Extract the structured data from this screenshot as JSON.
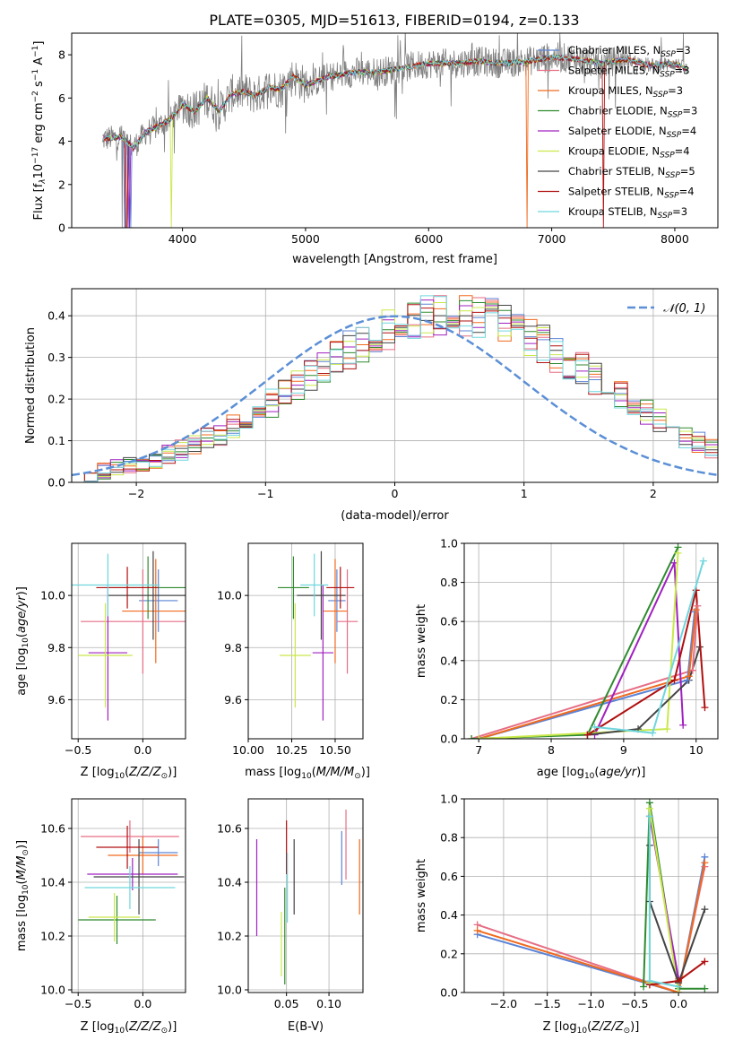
{
  "figure": {
    "title": "PLATE=0305, MJD=51613, FIBERID=0194, z=0.133"
  },
  "colors": {
    "Chabrier MILES": "#5b84d6",
    "Salpeter MILES": "#e66e85",
    "Kroupa MILES": "#f06a1e",
    "Chabrier ELODIE": "#2f8a2f",
    "Salpeter ELODIE": "#a020c0",
    "Kroupa ELODIE": "#c9e84a",
    "Chabrier STELIB": "#444444",
    "Salpeter STELIB": "#b01010",
    "Kroupa STELIB": "#6fd6dd",
    "data": "#808080",
    "gaussian": "#5b8fd6",
    "grid": "#b0b0b0"
  },
  "chart_data": [
    {
      "id": "spectrum",
      "type": "line",
      "xlabel": "wavelength [Angstrom, rest frame]",
      "ylabel": "Flux [f_λ 10^-17 erg cm^-2 s^-1 A^-1]",
      "xlim": [
        3100,
        8350
      ],
      "ylim": [
        0,
        9
      ],
      "xticks": [
        4000,
        5000,
        6000,
        7000,
        8000
      ],
      "yticks": [
        0,
        2,
        4,
        6,
        8
      ],
      "grid": false,
      "legend_position": "top-right",
      "x": [
        3350,
        3500,
        3600,
        3700,
        3800,
        3900,
        4000,
        4100,
        4200,
        4300,
        4400,
        4500,
        4600,
        4700,
        4800,
        4900,
        5000,
        5200,
        5400,
        5600,
        5800,
        6000,
        6200,
        6400,
        6600,
        6800,
        7000,
        7200,
        7400,
        7600,
        7800,
        8000,
        8100
      ],
      "series": [
        {
          "name": "Chabrier MILES",
          "nssp": "3",
          "dips": [
            3530,
            3560,
            3580
          ]
        },
        {
          "name": "Salpeter MILES",
          "nssp": "3",
          "dips": [
            3550
          ]
        },
        {
          "name": "Kroupa MILES",
          "nssp": "3",
          "dips": [
            6800
          ]
        },
        {
          "name": "Chabrier ELODIE",
          "nssp": "3",
          "dips": []
        },
        {
          "name": "Salpeter ELODIE",
          "nssp": "4",
          "dips": [
            3570
          ]
        },
        {
          "name": "Kroupa ELODIE",
          "nssp": "4",
          "dips": [
            3910
          ]
        },
        {
          "name": "Chabrier STELIB",
          "nssp": "5",
          "dips": []
        },
        {
          "name": "Salpeter STELIB",
          "nssp": "4",
          "dips": [
            3545,
            7420
          ]
        },
        {
          "name": "Kroupa STELIB",
          "nssp": "3",
          "dips": []
        }
      ],
      "model_y": [
        4.1,
        4.2,
        3.7,
        4.4,
        4.7,
        5.0,
        5.7,
        5.4,
        6.0,
        5.4,
        6.2,
        6.3,
        6.1,
        6.5,
        6.4,
        7.0,
        6.6,
        7.0,
        7.2,
        7.2,
        7.4,
        7.6,
        7.6,
        7.7,
        7.6,
        7.7,
        7.9,
        7.8,
        7.6,
        7.8,
        7.5,
        7.6,
        7.3
      ]
    },
    {
      "id": "residuals",
      "type": "step-histogram",
      "xlabel": "(data-model)/error",
      "ylabel": "Normed distribution",
      "xlim": [
        -2.5,
        2.5
      ],
      "ylim": [
        0,
        0.465
      ],
      "xticks": [
        -2,
        -1,
        0,
        1,
        2
      ],
      "yticks": [
        0.0,
        0.1,
        0.2,
        0.3,
        0.4
      ],
      "grid": true,
      "legend": "𝒩(0, 1)",
      "legend_position": "top-right",
      "bin_edges_start": -2.5,
      "bin_width": 0.1,
      "base_heights": [
        0.018,
        0.022,
        0.028,
        0.034,
        0.04,
        0.048,
        0.056,
        0.066,
        0.078,
        0.09,
        0.104,
        0.116,
        0.132,
        0.15,
        0.17,
        0.19,
        0.21,
        0.232,
        0.255,
        0.28,
        0.3,
        0.318,
        0.335,
        0.352,
        0.37,
        0.385,
        0.395,
        0.402,
        0.405,
        0.408,
        0.405,
        0.4,
        0.39,
        0.38,
        0.365,
        0.35,
        0.33,
        0.31,
        0.29,
        0.27,
        0.25,
        0.23,
        0.21,
        0.19,
        0.17,
        0.15,
        0.13,
        0.11,
        0.094,
        0.08
      ],
      "gaussian": {
        "mean": 0,
        "sigma": 1
      }
    },
    {
      "id": "age-vs-Z",
      "type": "errorbar",
      "xlabel": "Z [log10(Z/Z☉)]",
      "ylabel": "age  [log10(age/yr)]",
      "xlim": [
        -0.55,
        0.33
      ],
      "ylim": [
        9.45,
        10.2
      ],
      "xticks": [
        -0.5,
        0.0
      ],
      "yticks": [
        9.6,
        9.8,
        10.0
      ],
      "grid": true,
      "points": [
        {
          "name": "Chabrier MILES",
          "x": 0.12,
          "y": 9.98,
          "xerr": 0.15,
          "yerr": 0.12
        },
        {
          "name": "Salpeter MILES",
          "x": 0.0,
          "y": 9.9,
          "xerr": 0.48,
          "yerr": 0.2
        },
        {
          "name": "Kroupa MILES",
          "x": 0.1,
          "y": 9.94,
          "xerr": 0.26,
          "yerr": 0.2
        },
        {
          "name": "Chabrier ELODIE",
          "x": 0.04,
          "y": 10.03,
          "xerr": 0.3,
          "yerr": 0.12
        },
        {
          "name": "Salpeter ELODIE",
          "x": -0.27,
          "y": 9.78,
          "xerr": 0.15,
          "yerr": 0.26
        },
        {
          "name": "Kroupa ELODIE",
          "x": -0.29,
          "y": 9.77,
          "xerr": 0.21,
          "yerr": 0.2
        },
        {
          "name": "Chabrier STELIB",
          "x": 0.08,
          "y": 10.0,
          "xerr": 0.35,
          "yerr": 0.17
        },
        {
          "name": "Salpeter STELIB",
          "x": -0.12,
          "y": 10.03,
          "xerr": 0.24,
          "yerr": 0.08
        },
        {
          "name": "Kroupa STELIB",
          "x": -0.27,
          "y": 10.04,
          "xerr": 0.4,
          "yerr": 0.12
        }
      ]
    },
    {
      "id": "age-vs-mass",
      "type": "errorbar",
      "xlabel": "mass [log10(M/M☉)]",
      "ylabel": "",
      "xlim": [
        10.0,
        10.66
      ],
      "ylim": [
        9.45,
        10.2
      ],
      "xticks": [
        10.0,
        10.25,
        10.5
      ],
      "yticks": [
        9.6,
        9.8,
        10.0
      ],
      "grid": true,
      "points": [
        {
          "name": "Chabrier MILES",
          "x": 10.51,
          "y": 9.98,
          "xerr": 0.05,
          "yerr": 0.12
        },
        {
          "name": "Salpeter MILES",
          "x": 10.57,
          "y": 9.9,
          "xerr": 0.06,
          "yerr": 0.2
        },
        {
          "name": "Kroupa MILES",
          "x": 10.5,
          "y": 9.94,
          "xerr": 0.07,
          "yerr": 0.2
        },
        {
          "name": "Chabrier ELODIE",
          "x": 10.26,
          "y": 10.03,
          "xerr": 0.09,
          "yerr": 0.12
        },
        {
          "name": "Salpeter ELODIE",
          "x": 10.43,
          "y": 9.78,
          "xerr": 0.06,
          "yerr": 0.26
        },
        {
          "name": "Kroupa ELODIE",
          "x": 10.27,
          "y": 9.77,
          "xerr": 0.09,
          "yerr": 0.2
        },
        {
          "name": "Chabrier STELIB",
          "x": 10.42,
          "y": 10.0,
          "xerr": 0.14,
          "yerr": 0.17
        },
        {
          "name": "Salpeter STELIB",
          "x": 10.53,
          "y": 10.03,
          "xerr": 0.08,
          "yerr": 0.08
        },
        {
          "name": "Kroupa STELIB",
          "x": 10.38,
          "y": 10.04,
          "xerr": 0.08,
          "yerr": 0.12
        }
      ]
    },
    {
      "id": "mass-weight-vs-age",
      "type": "line",
      "xlabel": "age  [log10(age/yr)]",
      "ylabel": "mass weight",
      "xlim": [
        6.8,
        10.3
      ],
      "ylim": [
        0,
        1
      ],
      "xticks": [
        7,
        8,
        9,
        10
      ],
      "yticks": [
        0.0,
        0.2,
        0.4,
        0.6,
        0.8,
        1.0
      ],
      "grid": true,
      "series": [
        {
          "name": "Chabrier MILES",
          "x": [
            7.0,
            9.88
          ],
          "y": [
            0.0,
            0.3
          ]
        },
        {
          "name": "Salpeter MILES",
          "x": [
            6.9,
            9.95
          ],
          "y": [
            0.0,
            0.35
          ]
        },
        {
          "name": "Kroupa MILES",
          "x": [
            7.0,
            9.9
          ],
          "y": [
            0.0,
            0.32
          ]
        },
        {
          "name": "Chabrier ELODIE",
          "x": [
            6.9,
            8.5,
            9.75
          ],
          "y": [
            0.0,
            0.02,
            0.98
          ]
        },
        {
          "name": "Salpeter ELODIE",
          "x": [
            8.6,
            9.7,
            9.82
          ],
          "y": [
            0.02,
            0.9,
            0.07
          ]
        },
        {
          "name": "Kroupa ELODIE",
          "x": [
            7.0,
            9.6,
            9.75
          ],
          "y": [
            0.0,
            0.05,
            0.95
          ]
        },
        {
          "name": "Chabrier STELIB",
          "x": [
            8.5,
            9.2,
            9.9,
            10.05
          ],
          "y": [
            0.02,
            0.05,
            0.3,
            0.47
          ]
        },
        {
          "name": "Salpeter STELIB",
          "x": [
            8.5,
            9.7,
            10.0,
            10.12
          ],
          "y": [
            0.02,
            0.3,
            0.76,
            0.16
          ]
        },
        {
          "name": "Kroupa STELIB",
          "x": [
            8.6,
            9.4,
            10.1
          ],
          "y": [
            0.06,
            0.03,
            0.91
          ]
        }
      ],
      "extra_up": [
        {
          "name": "Chabrier MILES",
          "x": [
            9.88,
            9.98
          ],
          "y": [
            0.3,
            0.65
          ]
        },
        {
          "name": "Salpeter MILES",
          "x": [
            9.95,
            10.02
          ],
          "y": [
            0.35,
            0.68
          ]
        },
        {
          "name": "Kroupa MILES",
          "x": [
            9.9,
            10.0
          ],
          "y": [
            0.32,
            0.66
          ]
        }
      ]
    },
    {
      "id": "mass-vs-Z",
      "type": "errorbar",
      "xlabel": "Z [log10(Z/Z☉)]",
      "ylabel": "mass [log10(M/M☉)]",
      "xlim": [
        -0.55,
        0.33
      ],
      "ylim": [
        9.99,
        10.71
      ],
      "xticks": [
        -0.5,
        0.0
      ],
      "yticks": [
        10.0,
        10.2,
        10.4,
        10.6
      ],
      "grid": true,
      "points": [
        {
          "name": "Chabrier MILES",
          "x": 0.12,
          "y": 10.51,
          "xerr": 0.15,
          "yerr": 0.05
        },
        {
          "name": "Salpeter MILES",
          "x": -0.1,
          "y": 10.57,
          "xerr": 0.38,
          "yerr": 0.06
        },
        {
          "name": "Kroupa MILES",
          "x": 0.0,
          "y": 10.5,
          "xerr": 0.27,
          "yerr": 0.07
        },
        {
          "name": "Chabrier ELODIE",
          "x": -0.2,
          "y": 10.26,
          "xerr": 0.3,
          "yerr": 0.09
        },
        {
          "name": "Salpeter ELODIE",
          "x": -0.08,
          "y": 10.43,
          "xerr": 0.35,
          "yerr": 0.06
        },
        {
          "name": "Kroupa ELODIE",
          "x": -0.22,
          "y": 10.27,
          "xerr": 0.2,
          "yerr": 0.09
        },
        {
          "name": "Chabrier STELIB",
          "x": -0.03,
          "y": 10.42,
          "xerr": 0.35,
          "yerr": 0.14
        },
        {
          "name": "Salpeter STELIB",
          "x": -0.12,
          "y": 10.53,
          "xerr": 0.24,
          "yerr": 0.08
        },
        {
          "name": "Kroupa STELIB",
          "x": -0.1,
          "y": 10.38,
          "xerr": 0.35,
          "yerr": 0.08
        }
      ]
    },
    {
      "id": "mass-vs-ebv",
      "type": "errorbar",
      "xlabel": "E(B-V)",
      "ylabel": "",
      "xlim": [
        0.005,
        0.14
      ],
      "ylim": [
        9.99,
        10.71
      ],
      "xticks": [
        0.05,
        0.1
      ],
      "yticks": [
        10.0,
        10.2,
        10.4,
        10.6
      ],
      "grid": true,
      "points": [
        {
          "name": "Chabrier MILES",
          "x": 0.115,
          "y": 10.49,
          "xerr": 0.0,
          "yerr": 0.1
        },
        {
          "name": "Salpeter MILES",
          "x": 0.12,
          "y": 10.54,
          "xerr": 0.0,
          "yerr": 0.13
        },
        {
          "name": "Kroupa MILES",
          "x": 0.136,
          "y": 10.42,
          "xerr": 0.0,
          "yerr": 0.14
        },
        {
          "name": "Chabrier ELODIE",
          "x": 0.048,
          "y": 10.2,
          "xerr": 0.0,
          "yerr": 0.18
        },
        {
          "name": "Salpeter ELODIE",
          "x": 0.015,
          "y": 10.38,
          "xerr": 0.0,
          "yerr": 0.18
        },
        {
          "name": "Kroupa ELODIE",
          "x": 0.044,
          "y": 10.17,
          "xerr": 0.0,
          "yerr": 0.12
        },
        {
          "name": "Chabrier STELIB",
          "x": 0.059,
          "y": 10.42,
          "xerr": 0.0,
          "yerr": 0.14
        },
        {
          "name": "Salpeter STELIB",
          "x": 0.05,
          "y": 10.53,
          "xerr": 0.0,
          "yerr": 0.1
        },
        {
          "name": "Kroupa STELIB",
          "x": 0.051,
          "y": 10.38,
          "xerr": 0.0,
          "yerr": 0.13
        }
      ]
    },
    {
      "id": "mass-weight-vs-Z",
      "type": "line",
      "xlabel": "Z [log10(Z/Z☉)]",
      "ylabel": "mass weight",
      "xlim": [
        -2.45,
        0.45
      ],
      "ylim": [
        0,
        1
      ],
      "xticks": [
        -2.0,
        -1.5,
        -1.0,
        -0.5,
        0.0
      ],
      "yticks": [
        0.0,
        0.2,
        0.4,
        0.6,
        0.8,
        1.0
      ],
      "grid": true,
      "series": [
        {
          "name": "Chabrier MILES",
          "x": [
            -2.3,
            0.0,
            0.3
          ],
          "y": [
            0.3,
            0.0,
            0.7
          ]
        },
        {
          "name": "Salpeter MILES",
          "x": [
            -2.3,
            0.0,
            0.3
          ],
          "y": [
            0.35,
            0.0,
            0.65
          ]
        },
        {
          "name": "Kroupa MILES",
          "x": [
            -2.3,
            0.0,
            0.3
          ],
          "y": [
            0.32,
            0.0,
            0.67
          ]
        },
        {
          "name": "Chabrier ELODIE",
          "x": [
            -0.4,
            -0.33,
            0.0,
            0.3
          ],
          "y": [
            0.03,
            0.98,
            0.02,
            0.02
          ]
        },
        {
          "name": "Salpeter ELODIE",
          "x": [
            -0.33,
            0.0
          ],
          "y": [
            0.91,
            0.07
          ]
        },
        {
          "name": "Kroupa ELODIE",
          "x": [
            -0.33,
            -0.33,
            0.0
          ],
          "y": [
            0.05,
            0.95,
            0.0
          ]
        },
        {
          "name": "Chabrier STELIB",
          "x": [
            -0.33,
            -0.33,
            0.0,
            0.3
          ],
          "y": [
            0.76,
            0.47,
            0.05,
            0.43
          ]
        },
        {
          "name": "Salpeter STELIB",
          "x": [
            -0.33,
            0.0,
            0.3
          ],
          "y": [
            0.04,
            0.06,
            0.16
          ]
        },
        {
          "name": "Kroupa STELIB",
          "x": [
            -0.33,
            -0.33,
            0.0
          ],
          "y": [
            0.91,
            0.06,
            0.03
          ]
        }
      ]
    }
  ]
}
